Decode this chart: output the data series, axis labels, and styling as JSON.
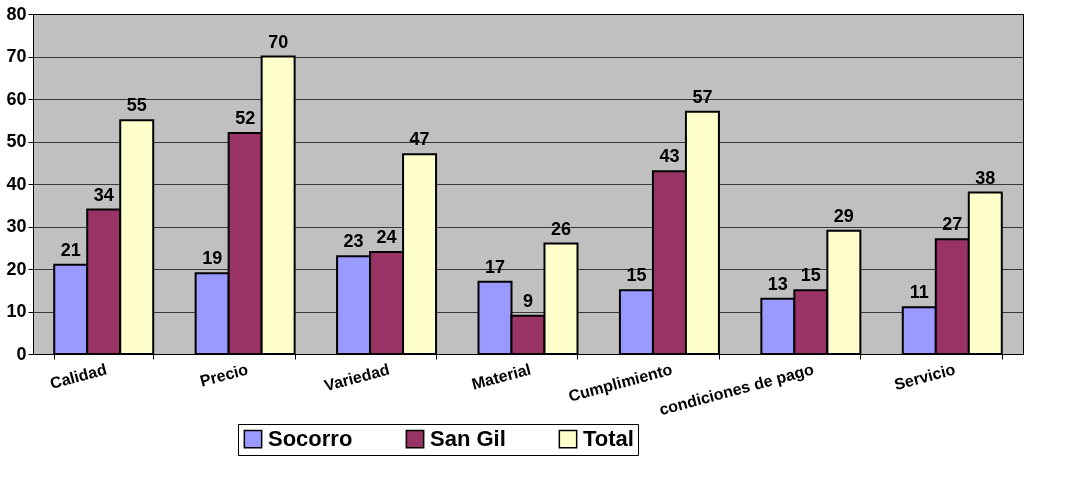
{
  "chart_data": {
    "type": "bar",
    "categories": [
      "Calidad",
      "Precio",
      "Variedad",
      "Material",
      "Cumplimiento",
      "condiciones de pago",
      "Servicio"
    ],
    "series": [
      {
        "name": "Socorro",
        "color": "#9999ff",
        "values": [
          21,
          19,
          23,
          17,
          15,
          13,
          11
        ]
      },
      {
        "name": "San Gil",
        "color": "#993366",
        "values": [
          34,
          52,
          24,
          9,
          43,
          15,
          27
        ]
      },
      {
        "name": "Total",
        "color": "#ffffcc",
        "values": [
          55,
          70,
          47,
          26,
          57,
          29,
          38
        ]
      }
    ],
    "ylim": [
      0,
      80
    ],
    "yticks": [
      0,
      10,
      20,
      30,
      40,
      50,
      60,
      70,
      80
    ],
    "grid": "y",
    "legend": "bottom",
    "data_labels": true
  }
}
